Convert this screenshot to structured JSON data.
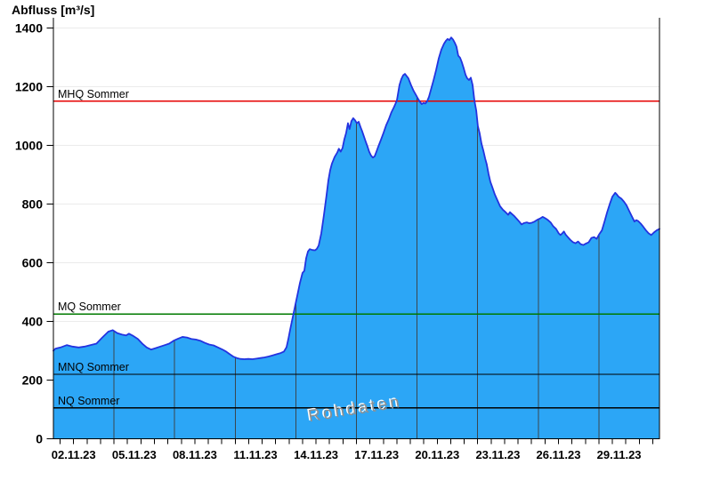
{
  "title": "Abfluss [m³/s]",
  "watermark": "Rohdaten",
  "colors": {
    "background": "#ffffff",
    "area_fill": "#2ca6f6",
    "area_line": "#2333e0",
    "grid_horizontal": "#ebebeb",
    "grid_vertical": "#3c3c3c",
    "axis": "#000000",
    "text": "#000000",
    "watermark_text": "#8f8f8f",
    "watermark_emboss": "#ffffff",
    "mhq": "#e60000",
    "mq": "#007a00",
    "mnq": "#000000",
    "nq": "#000000"
  },
  "chart_data": {
    "type": "area",
    "title": "Abfluss [m³/s]",
    "ylabel": "Abfluss [m³/s]",
    "xlabel": "",
    "grid": {
      "horizontal": true,
      "vertical": true
    },
    "ylim": [
      0,
      1400
    ],
    "y_ticks": [
      0,
      200,
      400,
      600,
      800,
      1000,
      1200,
      1400
    ],
    "x_range_days": [
      1,
      31
    ],
    "x_axis_note": "November 2023, plot spans 01.11.23 to 01.12.23",
    "x_tick_days": [
      2,
      5,
      8,
      11,
      14,
      17,
      20,
      23,
      26,
      29
    ],
    "x_tick_labels": [
      "02.11.23",
      "05.11.23",
      "08.11.23",
      "11.11.23",
      "14.11.23",
      "17.11.23",
      "20.11.23",
      "23.11.23",
      "26.11.23",
      "29.11.23"
    ],
    "x_gridline_days": [
      4,
      7,
      10,
      13,
      16,
      19,
      22,
      25,
      28
    ],
    "x_minor_tick_step_hours": 16,
    "x_minor_tick_offset_hours": 8,
    "reference_lines": [
      {
        "label": "MHQ Sommer",
        "value": 1150,
        "color_key": "mhq"
      },
      {
        "label": "MQ Sommer",
        "value": 425,
        "color_key": "mq"
      },
      {
        "label": "MNQ Sommer",
        "value": 220,
        "color_key": "mnq"
      },
      {
        "label": "NQ Sommer",
        "value": 105,
        "color_key": "nq"
      }
    ],
    "series": [
      {
        "name": "Rohdaten",
        "unit": "m³/s",
        "points": [
          [
            1,
            300
          ],
          [
            1.1,
            307
          ],
          [
            1.35,
            311
          ],
          [
            1.66,
            319
          ],
          [
            1.95,
            314
          ],
          [
            2.25,
            311
          ],
          [
            2.54,
            314
          ],
          [
            2.84,
            319
          ],
          [
            3.13,
            324
          ],
          [
            3.42,
            345
          ],
          [
            3.72,
            365
          ],
          [
            3.94,
            370
          ],
          [
            4.16,
            360
          ],
          [
            4.38,
            355
          ],
          [
            4.6,
            352
          ],
          [
            4.74,
            358
          ],
          [
            4.96,
            350
          ],
          [
            5.18,
            340
          ],
          [
            5.4,
            324
          ],
          [
            5.62,
            311
          ],
          [
            5.84,
            304
          ],
          [
            6.07,
            309
          ],
          [
            6.29,
            314
          ],
          [
            6.51,
            319
          ],
          [
            6.73,
            324
          ],
          [
            6.95,
            334
          ],
          [
            7.17,
            341
          ],
          [
            7.39,
            347
          ],
          [
            7.61,
            345
          ],
          [
            7.83,
            340
          ],
          [
            8.05,
            338
          ],
          [
            8.27,
            334
          ],
          [
            8.49,
            327
          ],
          [
            8.71,
            321
          ],
          [
            8.93,
            318
          ],
          [
            9.15,
            311
          ],
          [
            9.37,
            304
          ],
          [
            9.55,
            297
          ],
          [
            9.73,
            288
          ],
          [
            9.9,
            280
          ],
          [
            10.08,
            275
          ],
          [
            10.25,
            272
          ],
          [
            10.45,
            271
          ],
          [
            10.65,
            272
          ],
          [
            10.85,
            271
          ],
          [
            11.05,
            273
          ],
          [
            11.25,
            275
          ],
          [
            11.45,
            277
          ],
          [
            11.65,
            280
          ],
          [
            11.85,
            284
          ],
          [
            12.05,
            288
          ],
          [
            12.25,
            292
          ],
          [
            12.41,
            297
          ],
          [
            12.54,
            312
          ],
          [
            12.63,
            340
          ],
          [
            12.72,
            372
          ],
          [
            12.81,
            402
          ],
          [
            12.89,
            428
          ],
          [
            12.98,
            458
          ],
          [
            13.07,
            487
          ],
          [
            13.2,
            530
          ],
          [
            13.33,
            565
          ],
          [
            13.42,
            572
          ],
          [
            13.51,
            615
          ],
          [
            13.6,
            638
          ],
          [
            13.69,
            646
          ],
          [
            13.82,
            643
          ],
          [
            13.95,
            642
          ],
          [
            14.04,
            647
          ],
          [
            14.13,
            658
          ],
          [
            14.26,
            700
          ],
          [
            14.39,
            762
          ],
          [
            14.52,
            830
          ],
          [
            14.61,
            880
          ],
          [
            14.7,
            915
          ],
          [
            14.79,
            938
          ],
          [
            14.92,
            960
          ],
          [
            15.05,
            975
          ],
          [
            15.13,
            988
          ],
          [
            15.22,
            978
          ],
          [
            15.31,
            990
          ],
          [
            15.4,
            1020
          ],
          [
            15.49,
            1042
          ],
          [
            15.58,
            1075
          ],
          [
            15.66,
            1055
          ],
          [
            15.75,
            1082
          ],
          [
            15.84,
            1092
          ],
          [
            15.93,
            1085
          ],
          [
            16.02,
            1075
          ],
          [
            16.11,
            1080
          ],
          [
            16.2,
            1062
          ],
          [
            16.28,
            1048
          ],
          [
            16.37,
            1030
          ],
          [
            16.46,
            1012
          ],
          [
            16.55,
            995
          ],
          [
            16.63,
            978
          ],
          [
            16.72,
            965
          ],
          [
            16.81,
            958
          ],
          [
            16.9,
            962
          ],
          [
            16.99,
            978
          ],
          [
            17.08,
            995
          ],
          [
            17.21,
            1018
          ],
          [
            17.34,
            1042
          ],
          [
            17.47,
            1068
          ],
          [
            17.6,
            1088
          ],
          [
            17.73,
            1112
          ],
          [
            17.86,
            1130
          ],
          [
            18,
            1152
          ],
          [
            18.13,
            1205
          ],
          [
            18.22,
            1225
          ],
          [
            18.31,
            1238
          ],
          [
            18.4,
            1243
          ],
          [
            18.48,
            1236
          ],
          [
            18.57,
            1228
          ],
          [
            18.7,
            1205
          ],
          [
            18.83,
            1185
          ],
          [
            18.97,
            1168
          ],
          [
            19.05,
            1158
          ],
          [
            19.14,
            1148
          ],
          [
            19.23,
            1140
          ],
          [
            19.32,
            1144
          ],
          [
            19.41,
            1142
          ],
          [
            19.5,
            1150
          ],
          [
            19.59,
            1165
          ],
          [
            19.67,
            1185
          ],
          [
            19.81,
            1220
          ],
          [
            19.94,
            1255
          ],
          [
            20.07,
            1295
          ],
          [
            20.2,
            1325
          ],
          [
            20.33,
            1345
          ],
          [
            20.42,
            1355
          ],
          [
            20.51,
            1362
          ],
          [
            20.6,
            1358
          ],
          [
            20.69,
            1367
          ],
          [
            20.78,
            1360
          ],
          [
            20.86,
            1350
          ],
          [
            20.95,
            1336
          ],
          [
            21.04,
            1305
          ],
          [
            21.13,
            1298
          ],
          [
            21.22,
            1282
          ],
          [
            21.31,
            1262
          ],
          [
            21.4,
            1240
          ],
          [
            21.48,
            1228
          ],
          [
            21.57,
            1222
          ],
          [
            21.66,
            1230
          ],
          [
            21.75,
            1205
          ],
          [
            21.84,
            1152
          ],
          [
            21.93,
            1118
          ],
          [
            22.01,
            1065
          ],
          [
            22.1,
            1040
          ],
          [
            22.19,
            1005
          ],
          [
            22.28,
            982
          ],
          [
            22.37,
            955
          ],
          [
            22.45,
            935
          ],
          [
            22.54,
            902
          ],
          [
            22.63,
            875
          ],
          [
            22.72,
            858
          ],
          [
            22.85,
            832
          ],
          [
            22.98,
            812
          ],
          [
            23.11,
            792
          ],
          [
            23.25,
            780
          ],
          [
            23.38,
            772
          ],
          [
            23.51,
            763
          ],
          [
            23.6,
            772
          ],
          [
            23.69,
            766
          ],
          [
            23.82,
            758
          ],
          [
            23.95,
            748
          ],
          [
            24.08,
            738
          ],
          [
            24.17,
            730
          ],
          [
            24.3,
            735
          ],
          [
            24.43,
            737
          ],
          [
            24.56,
            734
          ],
          [
            24.69,
            736
          ],
          [
            24.82,
            740
          ],
          [
            24.95,
            746
          ],
          [
            25.08,
            750
          ],
          [
            25.22,
            756
          ],
          [
            25.35,
            751
          ],
          [
            25.48,
            745
          ],
          [
            25.61,
            737
          ],
          [
            25.74,
            724
          ],
          [
            25.88,
            715
          ],
          [
            26.01,
            700
          ],
          [
            26.1,
            694
          ],
          [
            26.19,
            700
          ],
          [
            26.27,
            706
          ],
          [
            26.36,
            695
          ],
          [
            26.45,
            688
          ],
          [
            26.58,
            678
          ],
          [
            26.71,
            670
          ],
          [
            26.84,
            666
          ],
          [
            26.97,
            672
          ],
          [
            27.1,
            663
          ],
          [
            27.23,
            660
          ],
          [
            27.36,
            665
          ],
          [
            27.49,
            669
          ],
          [
            27.63,
            684
          ],
          [
            27.76,
            687
          ],
          [
            27.89,
            681
          ],
          [
            28.02,
            697
          ],
          [
            28.15,
            710
          ],
          [
            28.28,
            740
          ],
          [
            28.41,
            772
          ],
          [
            28.54,
            800
          ],
          [
            28.67,
            825
          ],
          [
            28.81,
            838
          ],
          [
            28.89,
            832
          ],
          [
            28.98,
            824
          ],
          [
            29.11,
            818
          ],
          [
            29.24,
            808
          ],
          [
            29.37,
            795
          ],
          [
            29.5,
            776
          ],
          [
            29.63,
            758
          ],
          [
            29.76,
            740
          ],
          [
            29.85,
            745
          ],
          [
            29.94,
            742
          ],
          [
            30.07,
            733
          ],
          [
            30.2,
            722
          ],
          [
            30.33,
            710
          ],
          [
            30.46,
            700
          ],
          [
            30.59,
            694
          ],
          [
            30.73,
            703
          ],
          [
            30.86,
            710
          ],
          [
            31,
            715
          ]
        ]
      }
    ],
    "legend": null
  }
}
